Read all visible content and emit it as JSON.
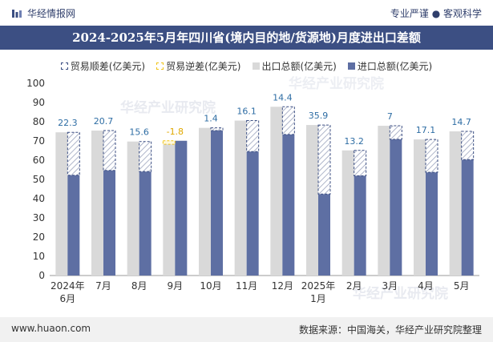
{
  "header": {
    "brand": "华经情报网",
    "slogan": "专业严谨 ● 客观科学"
  },
  "chart_data": {
    "type": "bar",
    "title": "2024-2025年5月年四川省(境内目的地/货源地)月度进出口差额",
    "categories": [
      "2024年\n6月",
      "7月",
      "8月",
      "9月",
      "10月",
      "11月",
      "12月",
      "2025年\n1月",
      "2月",
      "3月",
      "4月",
      "5月"
    ],
    "series": [
      {
        "name": "出口总额(亿美元)",
        "values": [
          74.5,
          75.4,
          69.7,
          68.3,
          76.8,
          80.6,
          87.8,
          78.3,
          65.1,
          77.9,
          70.8,
          75.0
        ]
      },
      {
        "name": "进口总额(亿美元)",
        "values": [
          52.2,
          54.7,
          54.1,
          70.1,
          75.4,
          64.5,
          73.4,
          42.4,
          51.9,
          70.9,
          53.7,
          60.3
        ]
      }
    ],
    "balance": {
      "labels": [
        "22.3",
        "20.7",
        "15.6",
        "-1.8",
        "1.4",
        "16.1",
        "14.4",
        "35.9",
        "13.2",
        "7",
        "17.1",
        "14.7"
      ]
    },
    "legend": [
      {
        "name": "贸易顺差(亿美元)",
        "kind": "surplus"
      },
      {
        "name": "贸易逆差(亿美元)",
        "kind": "deficit"
      },
      {
        "name": "出口总额(亿美元)",
        "kind": "export"
      },
      {
        "name": "进口总额(亿美元)",
        "kind": "import"
      }
    ],
    "ylim": [
      0,
      100
    ],
    "yticks": [
      0,
      10,
      20,
      30,
      40,
      50,
      60,
      70,
      80,
      90,
      100
    ],
    "colors": {
      "export": "#d9d9d9",
      "import": "#5e6fa3",
      "surplus_border": "#3c4f83",
      "deficit_border": "#f0c419",
      "label": "#2e6da4",
      "deficit_label": "#e0a800"
    }
  },
  "watermark": "华经产业研究院",
  "footer": {
    "website": "www.huaon.com",
    "source": "数据来源：中国海关，华经产业研究院整理"
  }
}
